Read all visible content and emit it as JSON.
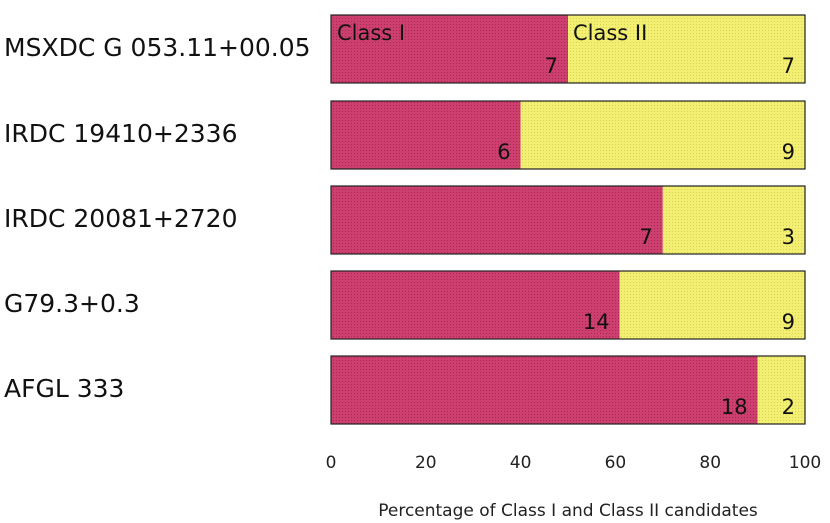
{
  "chart_data": {
    "type": "bar",
    "orientation": "horizontal",
    "stacked": true,
    "categories": [
      "MSXDC G 053.11+00.05",
      "IRDC 19410+2336",
      "IRDC 20081+2720",
      "G79.3+0.3",
      "AFGL 333"
    ],
    "series": [
      {
        "name": "Class I",
        "color": "#cc3f6e",
        "values": [
          50,
          40,
          70,
          60.9,
          90
        ],
        "labels": [
          "7",
          "6",
          "7",
          "14",
          "18"
        ]
      },
      {
        "name": "Class II",
        "color": "#f3ef72",
        "values": [
          50,
          60,
          30,
          39.1,
          10
        ],
        "labels": [
          "7",
          "9",
          "3",
          "9",
          "2"
        ]
      }
    ],
    "title": "",
    "xlabel": "Percentage of Class I and Class II candidates",
    "ylabel": "",
    "xlim": [
      0,
      100
    ],
    "xticks": [
      0,
      20,
      40,
      60,
      80,
      100
    ],
    "xtick_labels": [
      "0",
      "20",
      "40",
      "60",
      "80",
      "100"
    ],
    "grid": false,
    "legend": "inside-first-bar"
  }
}
